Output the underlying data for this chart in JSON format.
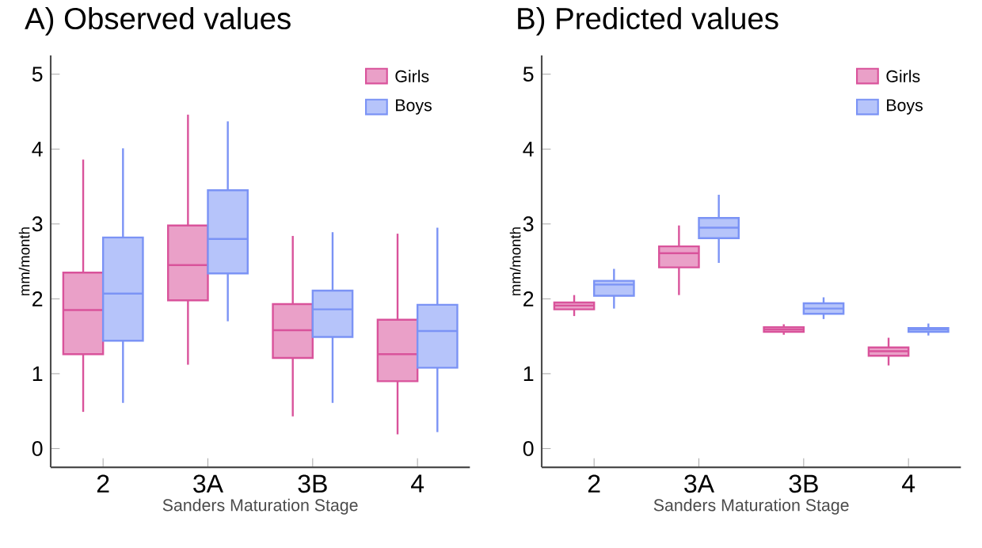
{
  "chart_data": [
    {
      "type": "box",
      "title": "A) Observed values",
      "xlabel": "Sanders Maturation Stage",
      "ylabel": "mm/month",
      "categories": [
        "2",
        "3A",
        "3B",
        "4"
      ],
      "ylim": [
        -0.25,
        5.25
      ],
      "yticks": [
        0,
        1,
        2,
        3,
        4,
        5
      ],
      "legend": "top right",
      "grid": false,
      "series": [
        {
          "name": "Girls",
          "color": "#d9539b",
          "boxes": [
            {
              "low": 0.49,
              "q1": 1.26,
              "median": 1.85,
              "q3": 2.35,
              "high": 3.86
            },
            {
              "low": 1.12,
              "q1": 1.98,
              "median": 2.45,
              "q3": 2.98,
              "high": 4.46
            },
            {
              "low": 0.43,
              "q1": 1.21,
              "median": 1.58,
              "q3": 1.93,
              "high": 2.84
            },
            {
              "low": 0.19,
              "q1": 0.9,
              "median": 1.26,
              "q3": 1.72,
              "high": 2.87
            }
          ]
        },
        {
          "name": "Boys",
          "color": "#7b93f5",
          "boxes": [
            {
              "low": 0.61,
              "q1": 1.44,
              "median": 2.07,
              "q3": 2.82,
              "high": 4.01
            },
            {
              "low": 1.7,
              "q1": 2.34,
              "median": 2.8,
              "q3": 3.45,
              "high": 4.37
            },
            {
              "low": 0.61,
              "q1": 1.49,
              "median": 1.86,
              "q3": 2.11,
              "high": 2.89
            },
            {
              "low": 0.22,
              "q1": 1.08,
              "median": 1.57,
              "q3": 1.92,
              "high": 2.95
            }
          ]
        }
      ]
    },
    {
      "type": "box",
      "title": "B) Predicted values",
      "xlabel": "Sanders Maturation Stage",
      "ylabel": "mm/month",
      "categories": [
        "2",
        "3A",
        "3B",
        "4"
      ],
      "ylim": [
        -0.25,
        5.25
      ],
      "yticks": [
        0,
        1,
        2,
        3,
        4,
        5
      ],
      "legend": "top right",
      "grid": false,
      "series": [
        {
          "name": "Girls",
          "color": "#d9539b",
          "boxes": [
            {
              "low": 1.77,
              "q1": 1.86,
              "median": 1.91,
              "q3": 1.95,
              "high": 2.05
            },
            {
              "low": 2.05,
              "q1": 2.42,
              "median": 2.61,
              "q3": 2.7,
              "high": 2.98
            },
            {
              "low": 1.52,
              "q1": 1.56,
              "median": 1.59,
              "q3": 1.62,
              "high": 1.66
            },
            {
              "low": 1.11,
              "q1": 1.24,
              "median": 1.3,
              "q3": 1.35,
              "high": 1.48
            }
          ]
        },
        {
          "name": "Boys",
          "color": "#7b93f5",
          "boxes": [
            {
              "low": 1.87,
              "q1": 2.04,
              "median": 2.19,
              "q3": 2.24,
              "high": 2.4
            },
            {
              "low": 2.48,
              "q1": 2.81,
              "median": 2.95,
              "q3": 3.08,
              "high": 3.39
            },
            {
              "low": 1.73,
              "q1": 1.8,
              "median": 1.87,
              "q3": 1.94,
              "high": 2.02
            },
            {
              "low": 1.51,
              "q1": 1.56,
              "median": 1.59,
              "q3": 1.61,
              "high": 1.67
            }
          ]
        }
      ]
    }
  ]
}
